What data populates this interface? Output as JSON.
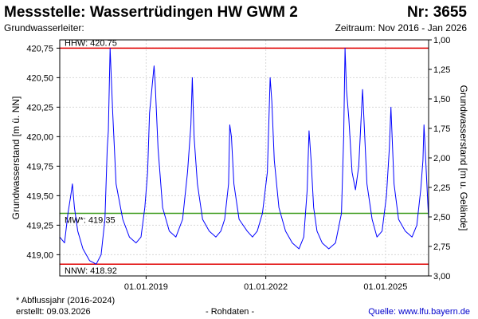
{
  "header": {
    "station": "Messstelle: Wassertrüdingen HW GWM 2",
    "number": "Nr: 3655",
    "aquifer": "Grundwasserleiter:",
    "period": "Zeitraum: Nov 2016 - Jan 2026"
  },
  "footer": {
    "note": "* Abflussjahr (2016-2024)",
    "created": "erstellt:  09.03.2026",
    "raw": "- Rohdaten -",
    "source_label": "Quelle: ",
    "source_link": "www.lfu.bayern.de"
  },
  "chart_data": {
    "type": "line",
    "ylabel": "Grundwasserstand [m ü. NN]",
    "ylabel_right": "Grundwasserstand [m u. Gelände]",
    "xlim": [
      "2016-11-01",
      "2026-01-31"
    ],
    "ylim": [
      418.82,
      420.82
    ],
    "ylim_right": [
      3.0,
      1.0
    ],
    "yticks": [
      419.0,
      419.25,
      419.5,
      419.75,
      420.0,
      420.25,
      420.5,
      420.75
    ],
    "ytick_labels": [
      "419,00",
      "419,25",
      "419,50",
      "419,75",
      "420,00",
      "420,25",
      "420,50",
      "420,75"
    ],
    "yticks_right": [
      1.0,
      1.25,
      1.5,
      1.75,
      2.0,
      2.25,
      2.5,
      2.75,
      3.0
    ],
    "ytick_labels_right": [
      "1,00",
      "1,25",
      "1,50",
      "1,75",
      "2,00",
      "2,25",
      "2,50",
      "2,75",
      "3,00"
    ],
    "xticks": [
      "2019-01-01",
      "2022-01-01",
      "2025-01-01"
    ],
    "xtick_labels": [
      "01.01.2019",
      "01.01.2022",
      "01.01.2025"
    ],
    "grid": true,
    "reference_lines": [
      {
        "label": "HHW: 420.75",
        "value": 420.75,
        "color": "#e00000"
      },
      {
        "label": "MW*: 419.35",
        "value": 419.35,
        "color": "#3a9a1a"
      },
      {
        "label": "NNW: 418.92",
        "value": 418.92,
        "color": "#e00000"
      }
    ],
    "series": [
      {
        "color": "#0000ff",
        "x": [
          "2016-11-01",
          "2016-12-15",
          "2017-01-15",
          "2017-02-10",
          "2017-02-25",
          "2017-03-15",
          "2017-04-15",
          "2017-06-01",
          "2017-08-01",
          "2017-10-01",
          "2017-11-15",
          "2017-12-20",
          "2018-01-10",
          "2018-01-20",
          "2018-02-05",
          "2018-03-01",
          "2018-04-01",
          "2018-06-01",
          "2018-08-01",
          "2018-10-01",
          "2018-11-15",
          "2018-12-20",
          "2019-01-15",
          "2019-02-01",
          "2019-03-15",
          "2019-03-25",
          "2019-04-20",
          "2019-06-01",
          "2019-08-01",
          "2019-10-01",
          "2019-12-01",
          "2020-01-15",
          "2020-02-15",
          "2020-02-28",
          "2020-03-15",
          "2020-04-15",
          "2020-06-01",
          "2020-08-01",
          "2020-10-01",
          "2020-11-15",
          "2020-12-20",
          "2021-01-25",
          "2021-02-05",
          "2021-02-20",
          "2021-03-15",
          "2021-05-01",
          "2021-07-15",
          "2021-09-01",
          "2021-10-15",
          "2021-12-01",
          "2022-01-15",
          "2022-02-10",
          "2022-02-25",
          "2022-03-20",
          "2022-05-01",
          "2022-07-01",
          "2022-09-01",
          "2022-11-01",
          "2022-12-15",
          "2023-01-15",
          "2023-02-01",
          "2023-02-20",
          "2023-03-15",
          "2023-04-15",
          "2023-06-01",
          "2023-08-01",
          "2023-10-01",
          "2023-11-25",
          "2023-12-15",
          "2023-12-28",
          "2024-01-10",
          "2024-02-01",
          "2024-03-01",
          "2024-04-01",
          "2024-05-01",
          "2024-06-05",
          "2024-07-15",
          "2024-09-01",
          "2024-10-15",
          "2024-12-01",
          "2025-01-10",
          "2025-02-05",
          "2025-02-20",
          "2025-03-20",
          "2025-05-01",
          "2025-07-01",
          "2025-09-01",
          "2025-10-15",
          "2025-11-20",
          "2025-12-10",
          "2025-12-20",
          "2026-01-10",
          "2026-01-31"
        ],
        "values": [
          419.15,
          419.1,
          419.35,
          419.5,
          419.6,
          419.4,
          419.2,
          419.05,
          418.95,
          418.92,
          419.0,
          419.3,
          419.9,
          420.05,
          420.75,
          420.2,
          419.6,
          419.3,
          419.15,
          419.1,
          419.15,
          419.4,
          419.7,
          420.2,
          420.6,
          420.45,
          419.9,
          419.4,
          419.2,
          419.15,
          419.3,
          419.7,
          420.1,
          420.5,
          420.0,
          419.6,
          419.3,
          419.2,
          419.15,
          419.2,
          419.3,
          419.6,
          420.1,
          420.0,
          419.6,
          419.3,
          419.2,
          419.15,
          419.2,
          419.35,
          419.7,
          420.5,
          420.3,
          419.8,
          419.4,
          419.2,
          419.1,
          419.05,
          419.15,
          419.55,
          420.05,
          419.8,
          419.4,
          419.2,
          419.1,
          419.05,
          419.1,
          419.35,
          420.0,
          420.75,
          420.4,
          420.15,
          419.7,
          419.55,
          419.75,
          420.4,
          419.6,
          419.3,
          419.15,
          419.2,
          419.5,
          419.9,
          420.25,
          419.6,
          419.3,
          419.2,
          419.15,
          419.25,
          419.55,
          419.8,
          420.1,
          419.7,
          419.3
        ]
      }
    ]
  }
}
